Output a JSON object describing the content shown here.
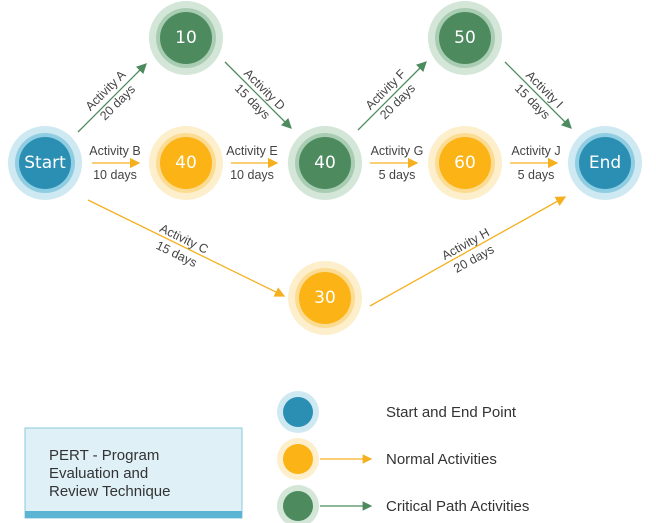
{
  "colors": {
    "start_end": "#2b8fb4",
    "normal": "#fbb316",
    "critical": "#4d8b5e"
  },
  "nodes": {
    "start": "Start",
    "n10": "10",
    "n40b": "40",
    "n40d": "40",
    "n50": "50",
    "n60": "60",
    "end": "End",
    "n30": "30"
  },
  "activities": {
    "A": {
      "name": "Activity  A",
      "duration": "20 days"
    },
    "B": {
      "name": "Activity  B",
      "duration": "10 days"
    },
    "C": {
      "name": "Activity  C",
      "duration": "15 days"
    },
    "D": {
      "name": "Activity  D",
      "duration": "15 days"
    },
    "E": {
      "name": "Activity  E",
      "duration": "10 days"
    },
    "F": {
      "name": "Activity  F",
      "duration": "20 days"
    },
    "G": {
      "name": "Activity  G",
      "duration": "5 days"
    },
    "H": {
      "name": "Activity  H",
      "duration": "20 days"
    },
    "I": {
      "name": "Activity  I",
      "duration": "15 days"
    },
    "J": {
      "name": "Activity  J",
      "duration": "5 days"
    }
  },
  "legend": {
    "start_end": "Start and End Point",
    "normal": "Normal Activities",
    "critical": "Critical Path Activities"
  },
  "title_box": {
    "line1": "PERT - Program",
    "line2": "Evaluation and",
    "line3": "Review Technique"
  }
}
